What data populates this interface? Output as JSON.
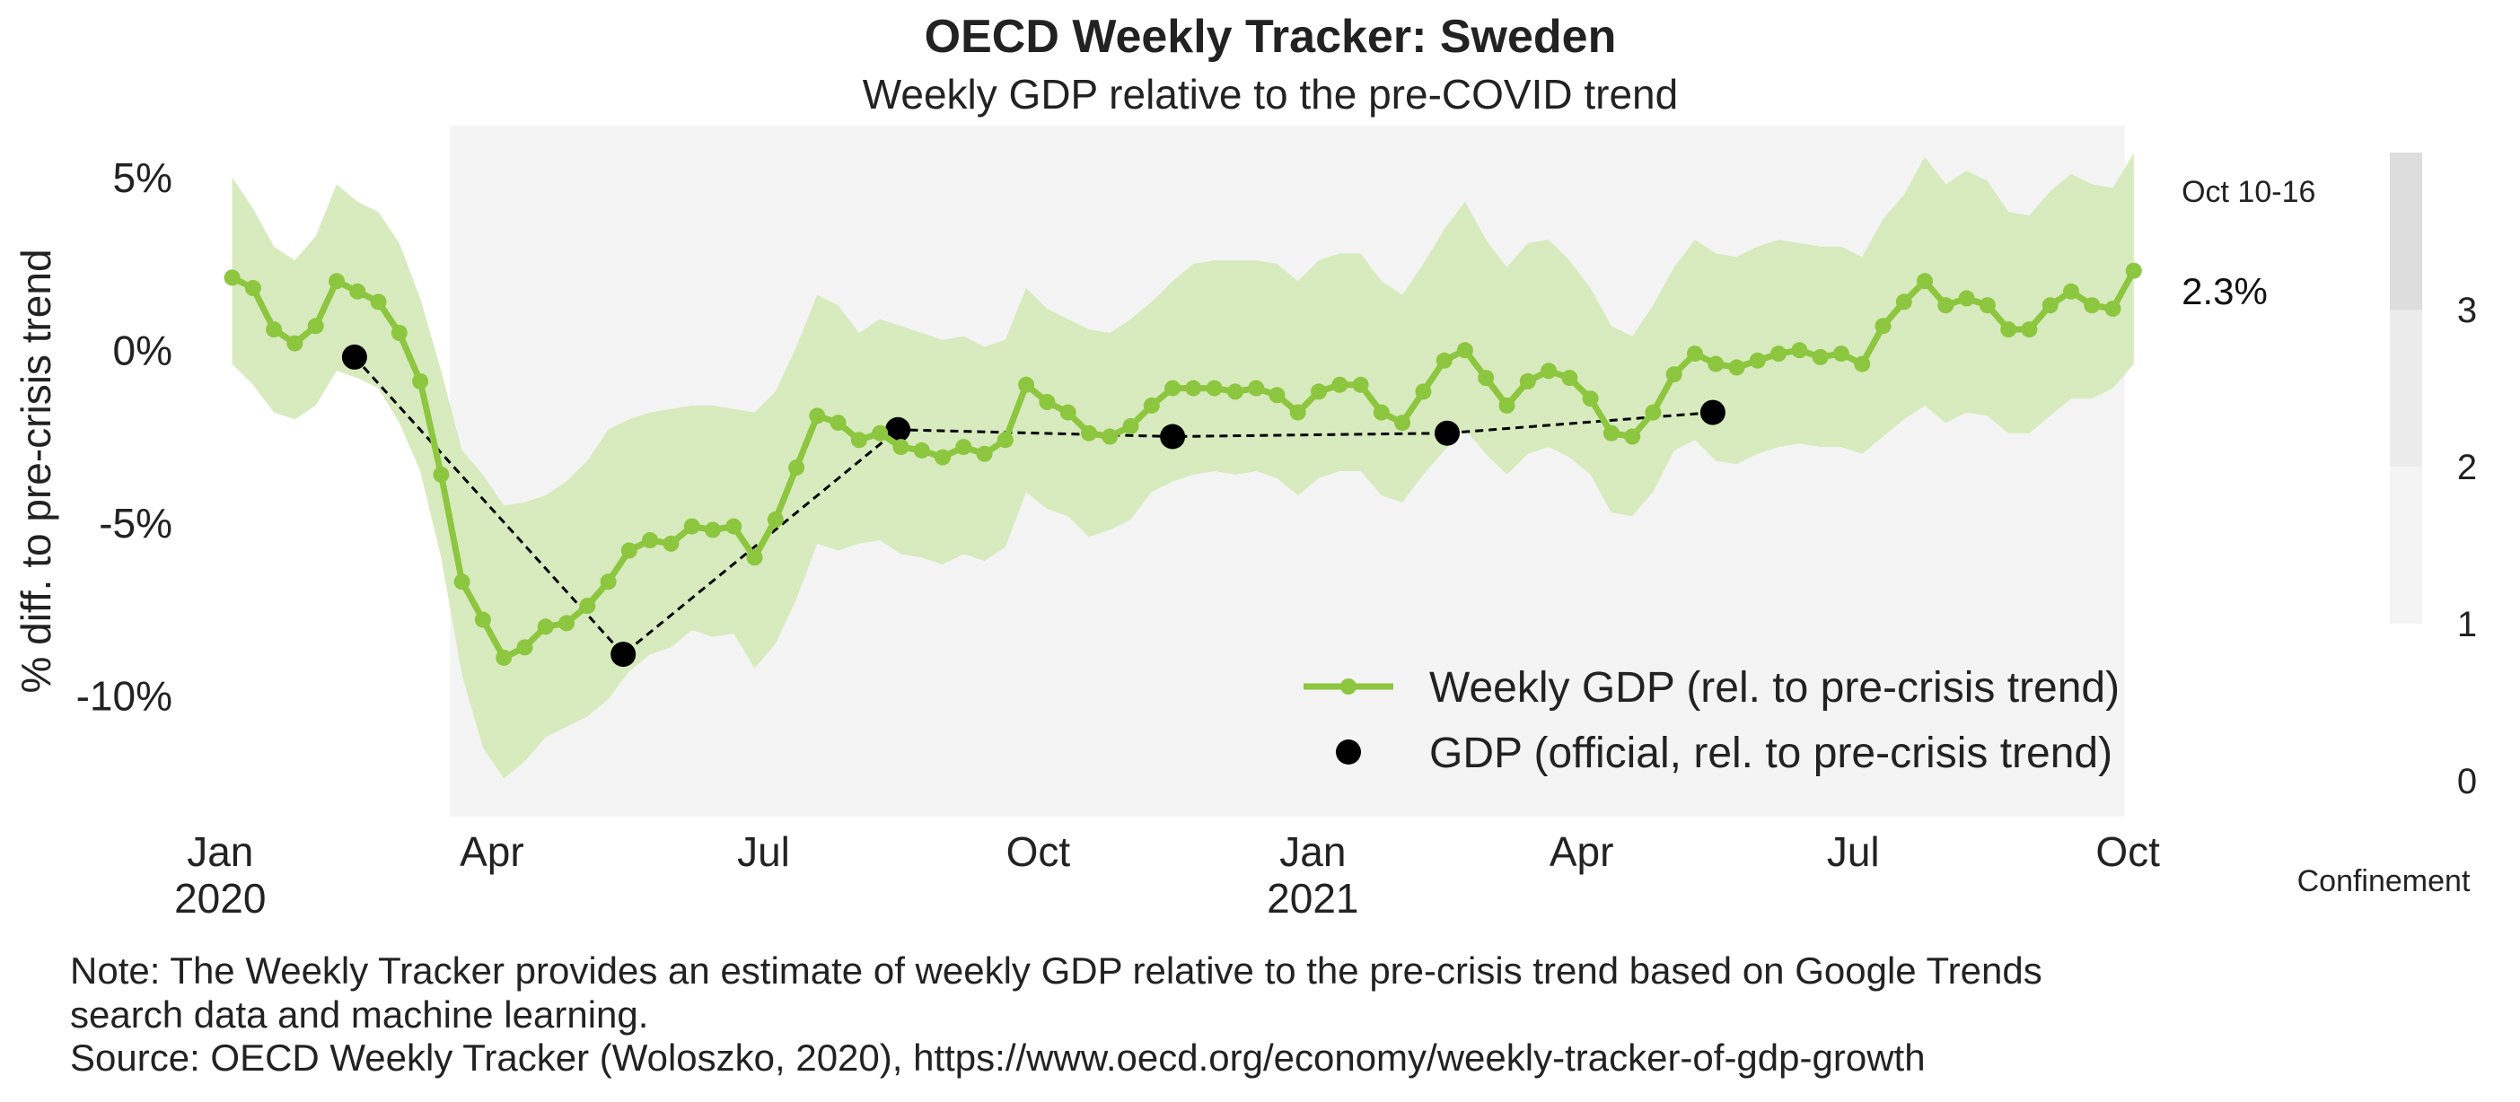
{
  "chart_data": {
    "type": "line",
    "title": "OECD Weekly Tracker: Sweden",
    "subtitle": "Weekly GDP relative to the pre-COVID trend",
    "ylabel": "% diff. to pre-crisis trend",
    "xlabel": "",
    "ylim": [
      -13.5,
      6.5
    ],
    "xlim": [
      "2019-12-25",
      "2021-10-22"
    ],
    "yticks": [
      {
        "value": 5,
        "label": "5%"
      },
      {
        "value": 0,
        "label": "0%"
      },
      {
        "value": -5,
        "label": "-5%"
      },
      {
        "value": -10,
        "label": "-10%"
      }
    ],
    "xticks": [
      {
        "date": "2020-01-01",
        "label": [
          "Jan",
          "2020"
        ]
      },
      {
        "date": "2020-04-01",
        "label": [
          "Apr"
        ]
      },
      {
        "date": "2020-07-01",
        "label": [
          "Jul"
        ]
      },
      {
        "date": "2020-10-01",
        "label": [
          "Oct"
        ]
      },
      {
        "date": "2021-01-01",
        "label": [
          "Jan",
          "2021"
        ]
      },
      {
        "date": "2021-04-01",
        "label": [
          "Apr"
        ]
      },
      {
        "date": "2021-07-01",
        "label": [
          "Jul"
        ]
      },
      {
        "date": "2021-10-01",
        "label": [
          "Oct"
        ]
      }
    ],
    "grid": false,
    "legend_position": "bottom-right",
    "confinement_shading": {
      "start": "2020-03-18",
      "end": "2021-09-30",
      "level": 1,
      "color": "#f4f4f4"
    },
    "colors": {
      "weekly": "#8dc63f",
      "band": "#d7ebbe",
      "official": "#000000"
    },
    "series": [
      {
        "name": "Weekly GDP (rel. to pre-crisis trend)",
        "start_date": "2020-01-05",
        "step_days": 7,
        "values": [
          2.1,
          1.8,
          0.6,
          0.2,
          0.7,
          2.0,
          1.7,
          1.4,
          0.5,
          -0.9,
          -3.6,
          -6.7,
          -7.8,
          -8.9,
          -8.6,
          -8.0,
          -7.9,
          -7.4,
          -6.7,
          -5.8,
          -5.5,
          -5.6,
          -5.1,
          -5.2,
          -5.1,
          -6.0,
          -4.9,
          -3.4,
          -1.9,
          -2.1,
          -2.6,
          -2.4,
          -2.8,
          -2.9,
          -3.1,
          -2.8,
          -3.0,
          -2.6,
          -1.0,
          -1.5,
          -1.8,
          -2.4,
          -2.5,
          -2.2,
          -1.6,
          -1.1,
          -1.1,
          -1.1,
          -1.2,
          -1.1,
          -1.3,
          -1.8,
          -1.2,
          -1.0,
          -1.0,
          -1.8,
          -2.1,
          -1.2,
          -0.3,
          0.0,
          -0.8,
          -1.6,
          -0.9,
          -0.6,
          -0.8,
          -1.4,
          -2.4,
          -2.5,
          -1.8,
          -0.7,
          -0.1,
          -0.4,
          -0.5,
          -0.3,
          -0.1,
          0.0,
          -0.2,
          -0.1,
          -0.4,
          0.7,
          1.4,
          2.0,
          1.3,
          1.5,
          1.3,
          0.6,
          0.6,
          1.3,
          1.7,
          1.3,
          1.2,
          2.3
        ]
      },
      {
        "name": "GDP (official, rel. to pre-crisis trend)",
        "points": [
          {
            "date": "2020-02-15",
            "value": -0.2
          },
          {
            "date": "2020-05-15",
            "value": -8.8
          },
          {
            "date": "2020-08-15",
            "value": -2.3
          },
          {
            "date": "2020-11-15",
            "value": -2.5
          },
          {
            "date": "2021-02-15",
            "value": -2.4
          },
          {
            "date": "2021-05-15",
            "value": -1.8
          }
        ]
      }
    ],
    "band_upper": [
      5.0,
      4.1,
      3.0,
      2.6,
      3.3,
      4.8,
      4.3,
      4.0,
      3.1,
      1.5,
      -0.6,
      -2.9,
      -3.6,
      -4.5,
      -4.4,
      -4.2,
      -3.8,
      -3.2,
      -2.3,
      -2.0,
      -1.8,
      -1.7,
      -1.6,
      -1.6,
      -1.7,
      -1.8,
      -1.2,
      0.1,
      1.6,
      1.3,
      0.5,
      0.9,
      0.7,
      0.5,
      0.3,
      0.4,
      0.1,
      0.3,
      1.8,
      1.2,
      0.9,
      0.6,
      0.5,
      0.9,
      1.4,
      2.0,
      2.5,
      2.6,
      2.6,
      2.6,
      2.5,
      2.0,
      2.6,
      2.8,
      2.8,
      2.0,
      1.6,
      2.5,
      3.5,
      4.3,
      3.2,
      2.4,
      3.1,
      3.2,
      2.6,
      1.8,
      0.7,
      0.4,
      1.3,
      2.4,
      3.2,
      2.8,
      2.7,
      3.0,
      3.2,
      3.1,
      3.0,
      3.0,
      2.7,
      3.8,
      4.5,
      5.6,
      4.8,
      5.2,
      4.9,
      4.0,
      3.9,
      4.6,
      5.1,
      4.8,
      4.7,
      5.7
    ],
    "band_lower": [
      -0.4,
      -1.0,
      -1.8,
      -2.0,
      -1.6,
      -0.6,
      -0.8,
      -1.1,
      -2.1,
      -3.5,
      -6.0,
      -9.4,
      -11.5,
      -12.4,
      -11.9,
      -11.2,
      -10.9,
      -10.6,
      -10.1,
      -9.3,
      -8.8,
      -8.6,
      -8.1,
      -8.3,
      -8.2,
      -9.2,
      -8.5,
      -7.2,
      -5.6,
      -5.8,
      -5.6,
      -5.5,
      -5.9,
      -6.0,
      -6.2,
      -5.9,
      -6.1,
      -5.7,
      -4.1,
      -4.6,
      -4.8,
      -5.4,
      -5.2,
      -4.9,
      -4.1,
      -3.8,
      -3.6,
      -3.5,
      -3.6,
      -3.5,
      -3.7,
      -4.2,
      -3.7,
      -3.5,
      -3.5,
      -4.2,
      -4.4,
      -3.6,
      -2.9,
      -2.3,
      -3.0,
      -3.6,
      -3.0,
      -2.8,
      -3.1,
      -3.6,
      -4.7,
      -4.8,
      -4.1,
      -2.9,
      -2.6,
      -3.2,
      -3.3,
      -3.0,
      -2.8,
      -2.7,
      -2.8,
      -2.8,
      -3.0,
      -2.5,
      -2.0,
      -1.6,
      -2.1,
      -1.8,
      -1.9,
      -2.4,
      -2.4,
      -1.9,
      -1.4,
      -1.4,
      -1.1,
      -0.4
    ],
    "annotations": [
      {
        "label": "Oct 10-16",
        "date": "2021-10-10",
        "value": 4.6
      },
      {
        "label": "2.3%",
        "date": "2021-10-10",
        "value": 1.7
      }
    ],
    "colorbar": {
      "label": "Confinement",
      "ticks": [
        {
          "value": 0,
          "label": "0"
        },
        {
          "value": 1,
          "label": "1"
        },
        {
          "value": 2,
          "label": "2"
        },
        {
          "value": 3,
          "label": "3"
        }
      ],
      "segments": [
        {
          "from": 1,
          "to": 2,
          "color": "#f4f4f4"
        },
        {
          "from": 2,
          "to": 3,
          "color": "#ebebeb"
        },
        {
          "from": 3,
          "to": 4,
          "color": "#dddddd"
        }
      ]
    }
  },
  "note": {
    "line1": "Note: The Weekly Tracker provides an estimate of weekly GDP relative to the pre-crisis trend based on Google Trends",
    "line2": "search data and machine learning.",
    "line3": "Source: OECD Weekly Tracker (Woloszko, 2020), https://www.oecd.org/economy/weekly-tracker-of-gdp-growth"
  }
}
